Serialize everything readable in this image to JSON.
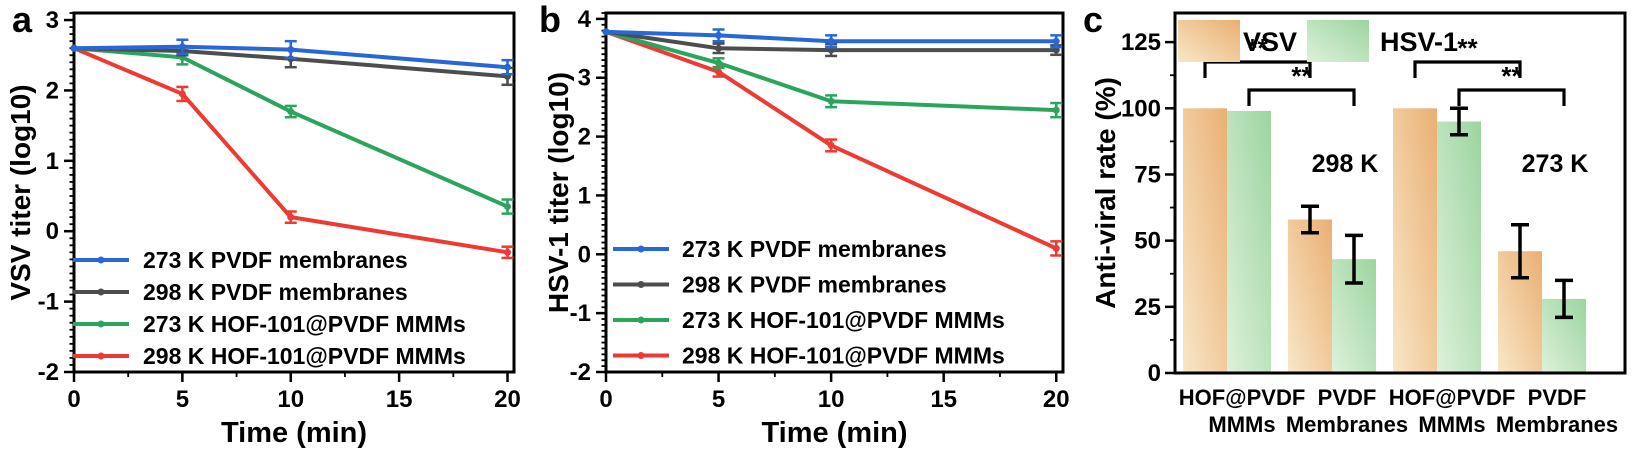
{
  "figure": {
    "background": "#ffffff",
    "text_color": "#000000"
  },
  "chart_data": [
    {
      "id": "a",
      "panel_label": "a",
      "type": "line",
      "title": "",
      "xlabel": "Time (min)",
      "ylabel": "VSV titer (log10)",
      "xlim": [
        0,
        20.3
      ],
      "ylim": [
        -2,
        3.1
      ],
      "xticks": [
        0,
        5,
        10,
        15,
        20
      ],
      "yticks": [
        -2,
        -1,
        0,
        1,
        2,
        3
      ],
      "x_minor_step": 2.5,
      "y_minor_step": 0.1,
      "grid": false,
      "legend_position": "bottom-left",
      "x": [
        0,
        5,
        10,
        20
      ],
      "series": [
        {
          "name": "273 K PVDF membranes",
          "color": "#2767d8",
          "values": [
            2.6,
            2.62,
            2.58,
            2.33
          ],
          "errors": [
            0,
            0.1,
            0.12,
            0.1
          ]
        },
        {
          "name": "298 K PVDF membranes",
          "color": "#4d4d4d",
          "values": [
            2.6,
            2.56,
            2.45,
            2.2
          ],
          "errors": [
            0,
            0.06,
            0.12,
            0.12
          ]
        },
        {
          "name": "273 K HOF-101@PVDF MMMs",
          "color": "#2ba55e",
          "values": [
            2.6,
            2.47,
            1.7,
            0.35
          ],
          "errors": [
            0,
            0.1,
            0.08,
            0.1
          ]
        },
        {
          "name": "298 K HOF-101@PVDF MMMs",
          "color": "#ee3a32",
          "values": [
            2.6,
            1.95,
            0.2,
            -0.3
          ],
          "errors": [
            0,
            0.1,
            0.08,
            0.08
          ]
        }
      ]
    },
    {
      "id": "b",
      "panel_label": "b",
      "type": "line",
      "title": "",
      "xlabel": "Time (min)",
      "ylabel": "HSV-1 titer (log10)",
      "xlim": [
        0,
        20.3
      ],
      "ylim": [
        -2,
        4.1
      ],
      "xticks": [
        0,
        5,
        10,
        15,
        20
      ],
      "yticks": [
        -2,
        -1,
        0,
        1,
        2,
        3,
        4
      ],
      "x_minor_step": 2.5,
      "y_minor_step": 0.1,
      "grid": false,
      "legend_position": "bottom-left",
      "x": [
        0,
        5,
        10,
        20
      ],
      "series": [
        {
          "name": "273 K PVDF membranes",
          "color": "#2767d8",
          "values": [
            3.78,
            3.72,
            3.62,
            3.62
          ],
          "errors": [
            0,
            0.1,
            0.1,
            0.1
          ]
        },
        {
          "name": "298 K PVDF membranes",
          "color": "#4d4d4d",
          "values": [
            3.78,
            3.5,
            3.47,
            3.47
          ],
          "errors": [
            0,
            0.08,
            0.1,
            0.08
          ]
        },
        {
          "name": "273 K HOF-101@PVDF MMMs",
          "color": "#2ba55e",
          "values": [
            3.78,
            3.25,
            2.6,
            2.45
          ],
          "errors": [
            0,
            0.08,
            0.1,
            0.12
          ]
        },
        {
          "name": "298 K HOF-101@PVDF MMMs",
          "color": "#ee3a32",
          "values": [
            3.78,
            3.1,
            1.85,
            0.1
          ],
          "errors": [
            0,
            0.08,
            0.1,
            0.12
          ]
        }
      ]
    },
    {
      "id": "c",
      "panel_label": "c",
      "type": "bar",
      "title": "",
      "xlabel": "",
      "ylabel": "Anti-viral rate (%)",
      "ylim": [
        0,
        136
      ],
      "yticks": [
        0,
        25,
        50,
        75,
        100,
        125
      ],
      "y_minor_step": 12.5,
      "grid": false,
      "legend_position": "top-inside",
      "categories": [
        [
          "HOF@PVDF",
          "MMMs"
        ],
        [
          "PVDF",
          "Membranes"
        ],
        [
          "HOF@PVDF",
          "MMMs"
        ],
        [
          "PVDF",
          "Membranes"
        ]
      ],
      "series": [
        {
          "name": "VSV",
          "color_dark": "#eaaf72",
          "color_light": "#f8e7c8",
          "values": [
            100,
            58,
            100,
            46
          ],
          "errors": [
            0,
            5,
            0,
            10
          ]
        },
        {
          "name": "HSV-1",
          "color_dark": "#9cd4a0",
          "color_light": "#def1da",
          "values": [
            99,
            43,
            95,
            28
          ],
          "errors": [
            0,
            9,
            5,
            7
          ]
        }
      ],
      "annotations": [
        {
          "text": "298 K",
          "group": 1
        },
        {
          "text": "273 K",
          "group": 3
        }
      ],
      "significance": [
        {
          "label": "**",
          "series": 0,
          "from_group": 0,
          "to_group": 1
        },
        {
          "label": "**",
          "series": 1,
          "from_group": 0,
          "to_group": 1
        },
        {
          "label": "**",
          "series": 0,
          "from_group": 2,
          "to_group": 3
        },
        {
          "label": "**",
          "series": 1,
          "from_group": 2,
          "to_group": 3
        }
      ]
    }
  ]
}
